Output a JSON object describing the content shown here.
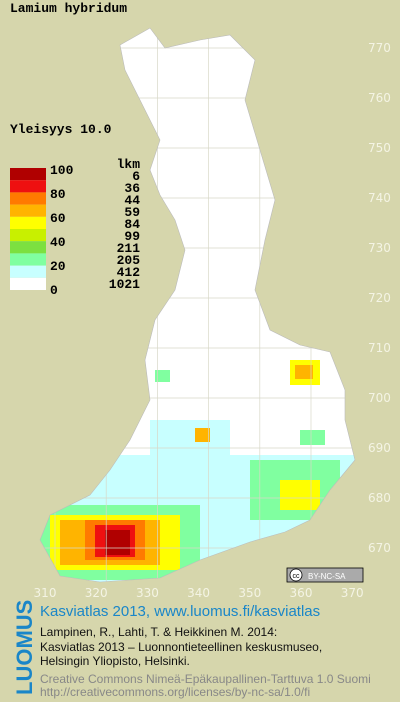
{
  "title": "Lamium hybridum",
  "frequency": "Yleisyys  10.0",
  "legend": {
    "scale_labels": [
      "100",
      "80",
      "60",
      "40",
      "20",
      "0"
    ],
    "count_header": "lkm",
    "classes": [
      {
        "color": "#b00000",
        "count": "6"
      },
      {
        "color": "#ee1010",
        "count": "36"
      },
      {
        "color": "#ff7a00",
        "count": "44"
      },
      {
        "color": "#ffb400",
        "count": "59"
      },
      {
        "color": "#ffff00",
        "count": "84"
      },
      {
        "color": "#c8f000",
        "count": "99"
      },
      {
        "color": "#7ce040",
        "count": "211"
      },
      {
        "color": "#80ffa0",
        "count": "205"
      },
      {
        "color": "#c8ffff",
        "count": "412"
      },
      {
        "color": "#ffffff",
        "count": "1021"
      }
    ]
  },
  "grid": {
    "y_ticks": [
      "770",
      "760",
      "750",
      "740",
      "730",
      "720",
      "710",
      "700",
      "690",
      "680",
      "670"
    ],
    "x_ticks": [
      "310",
      "320",
      "330",
      "340",
      "350",
      "360",
      "370"
    ]
  },
  "badge": {
    "cc": "cc",
    "license": "BY-NC-SA"
  },
  "footer": {
    "logo": "LUOMUS",
    "heading": "Kasviatlas 2013, www.luomus.fi/kasviatlas",
    "citation": [
      "Lampinen, R., Lahti, T. & Heikkinen M. 2014:",
      "Kasviatlas 2013 – Luonnontieteellinen keskusmuseo,",
      "Helsingin Yliopisto, Helsinki."
    ],
    "license": [
      "Creative Commons Nimeä-Epäkaupallinen-Tarttuva 1.0 Suomi",
      "http://creativecommons.org/licenses/by-nc-sa/1.0/fi"
    ]
  }
}
